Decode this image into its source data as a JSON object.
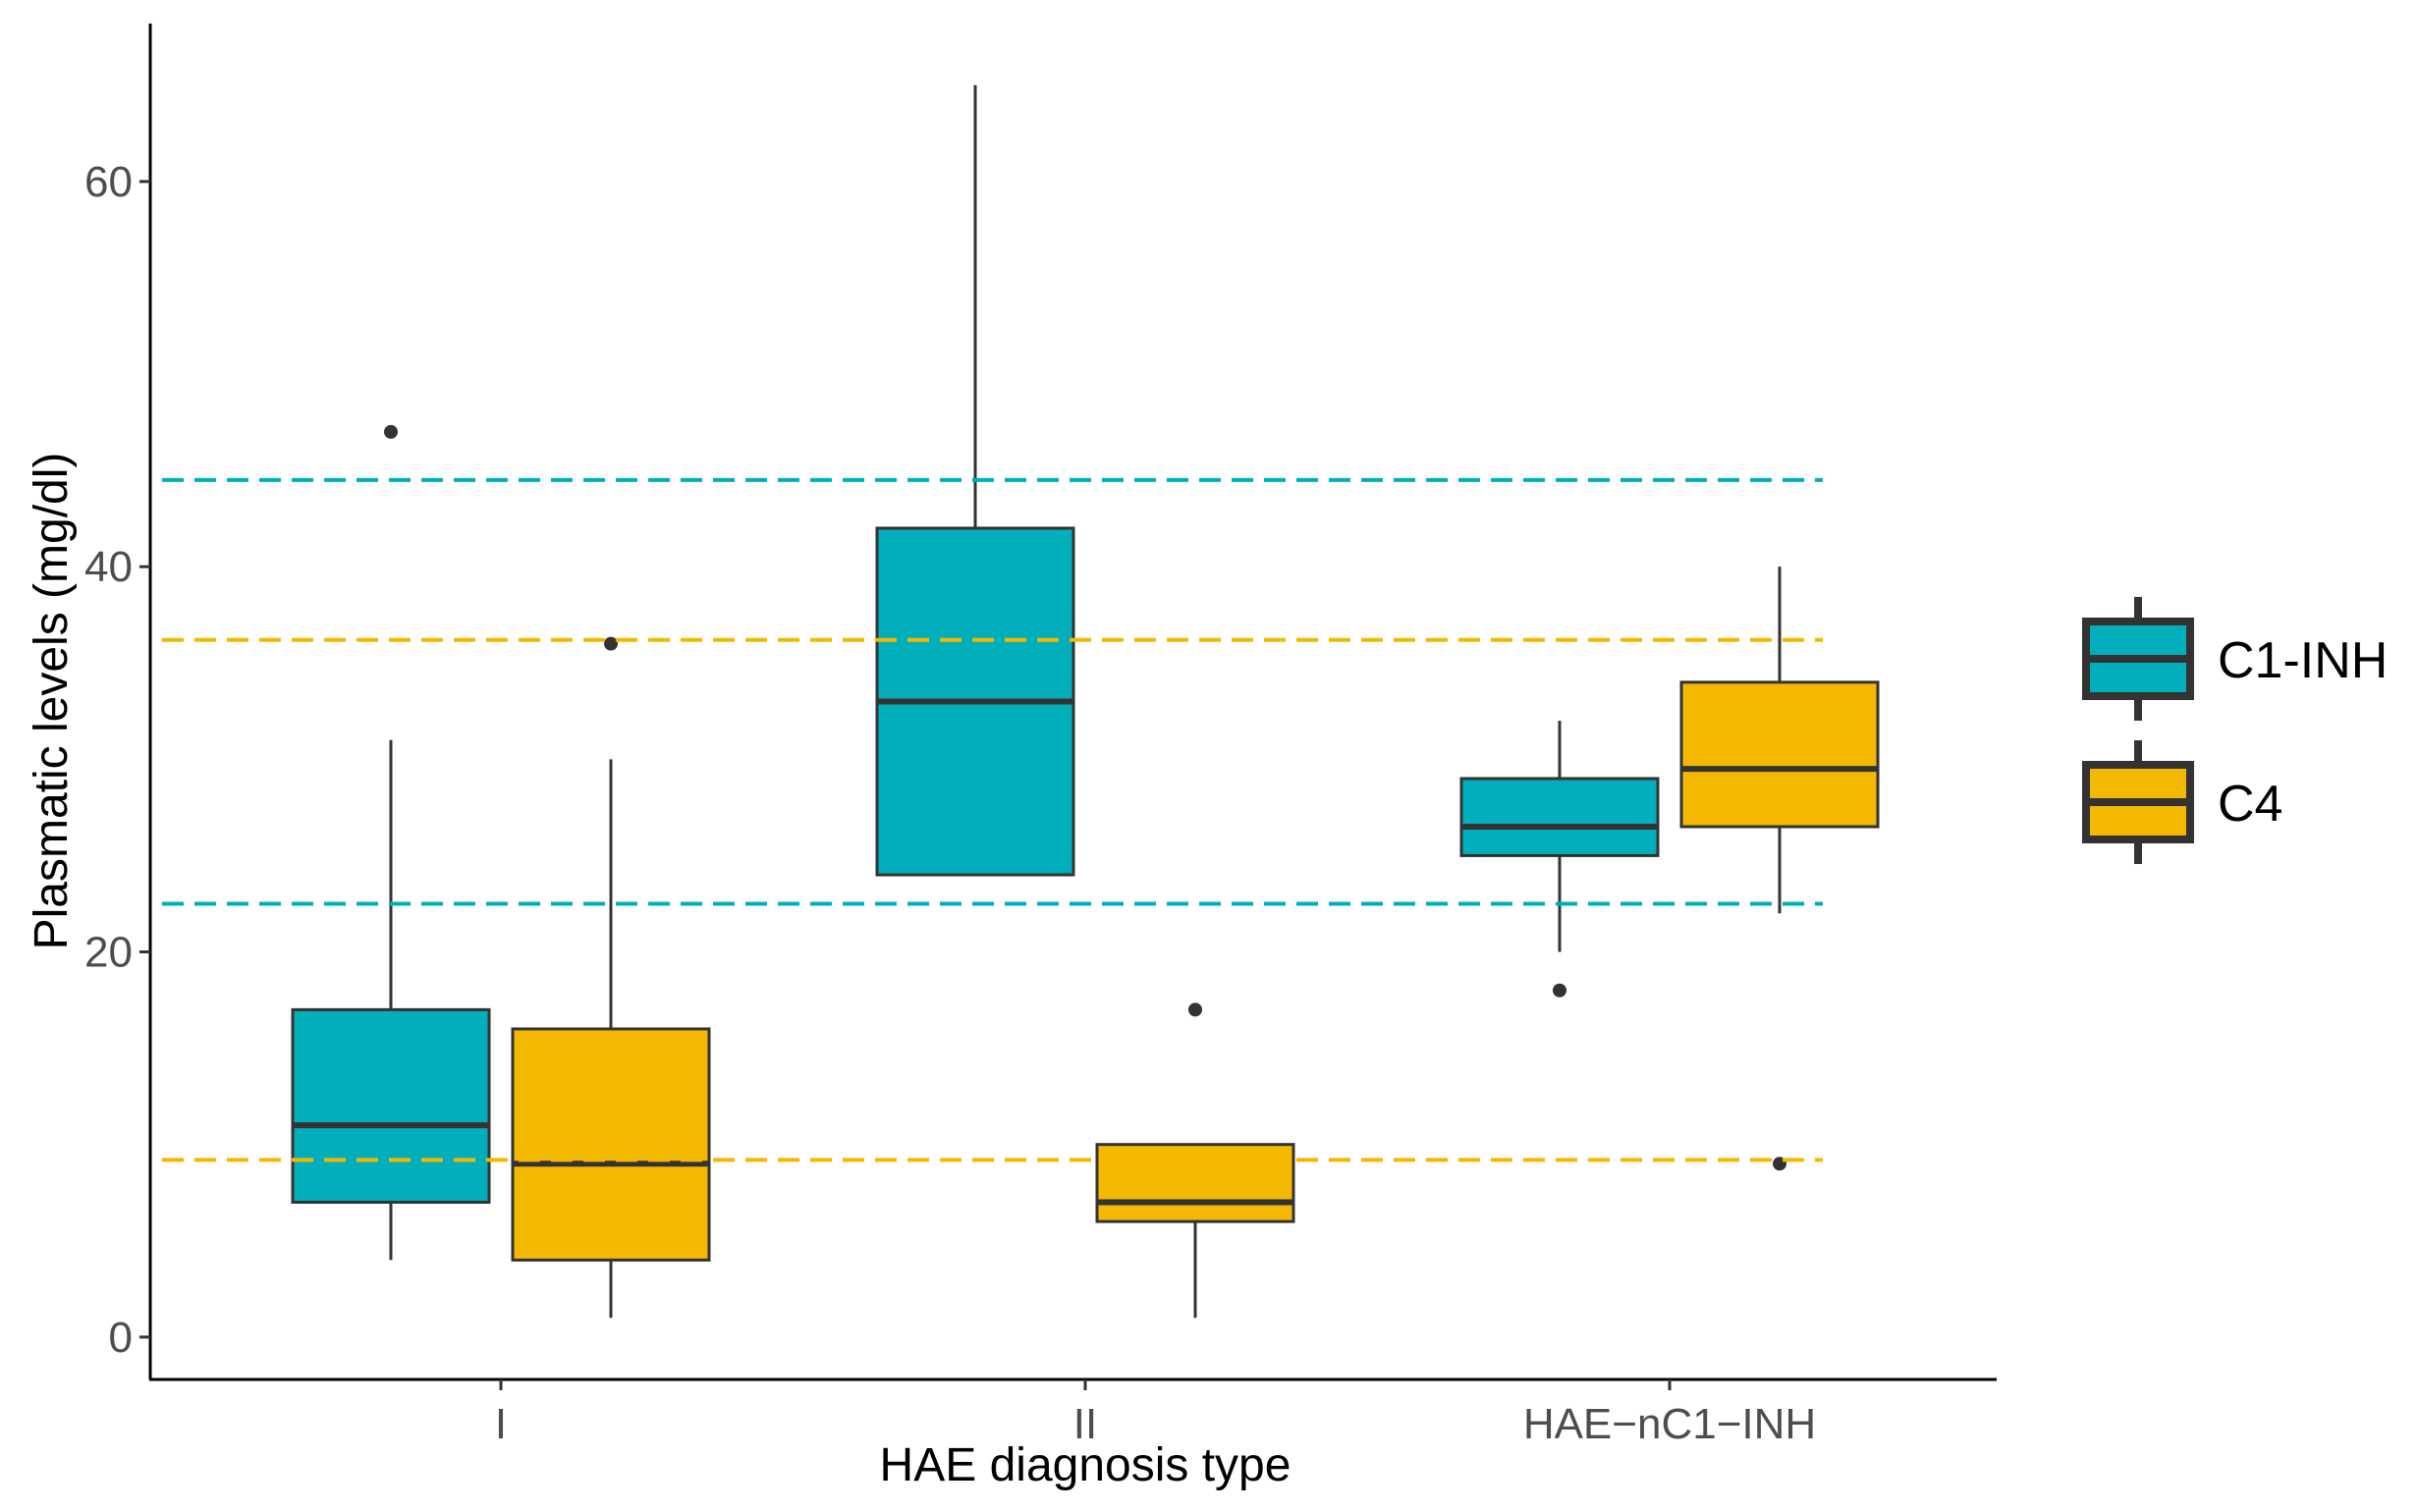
{
  "chart_data": {
    "type": "boxplot",
    "title": "",
    "xlabel": "HAE diagnosis type",
    "ylabel": "Plasmatic levels (mg/dl)",
    "ylim": [
      -2.2,
      68.2
    ],
    "yticks": [
      0,
      20,
      40,
      60
    ],
    "categories": [
      "I",
      "II",
      "HAE−nC1−INH"
    ],
    "legend": {
      "placement": "right",
      "entries": [
        "C1-INH",
        "C4"
      ]
    },
    "grid": false,
    "series": [
      {
        "name": "C1-INH",
        "color": "#00AFBB",
        "boxes": [
          {
            "category": "I",
            "lower_whisker": 4,
            "q1": 7,
            "median": 11,
            "q3": 17,
            "upper_whisker": 31,
            "outliers": [
              47
            ]
          },
          {
            "category": "II",
            "lower_whisker": 24,
            "q1": 24,
            "median": 33,
            "q3": 42,
            "upper_whisker": 65,
            "outliers": []
          },
          {
            "category": "HAE−nC1−INH",
            "lower_whisker": 20,
            "q1": 25,
            "median": 26.5,
            "q3": 29,
            "upper_whisker": 32,
            "outliers": [
              18
            ]
          }
        ]
      },
      {
        "name": "C4",
        "color": "#F5B800",
        "boxes": [
          {
            "category": "I",
            "lower_whisker": 1,
            "q1": 4,
            "median": 9,
            "q3": 16,
            "upper_whisker": 30,
            "outliers": [
              36
            ]
          },
          {
            "category": "II",
            "lower_whisker": 1,
            "q1": 6,
            "median": 7,
            "q3": 10,
            "upper_whisker": 10,
            "outliers": [
              17
            ]
          },
          {
            "category": "HAE−nC1−INH",
            "lower_whisker": 22,
            "q1": 26.5,
            "median": 29.5,
            "q3": 34,
            "upper_whisker": 40,
            "outliers": [
              9
            ]
          }
        ]
      }
    ],
    "reference_lines": [
      {
        "series": "C1-INH",
        "y": 44.5,
        "style": "dashed",
        "color": "#00AFBB"
      },
      {
        "series": "C1-INH",
        "y": 22.5,
        "style": "dashed",
        "color": "#00AFBB"
      },
      {
        "series": "C4",
        "y": 36.2,
        "style": "dashed",
        "color": "#F5B800"
      },
      {
        "series": "C4",
        "y": 9.2,
        "style": "dashed",
        "color": "#F5B800"
      }
    ]
  }
}
